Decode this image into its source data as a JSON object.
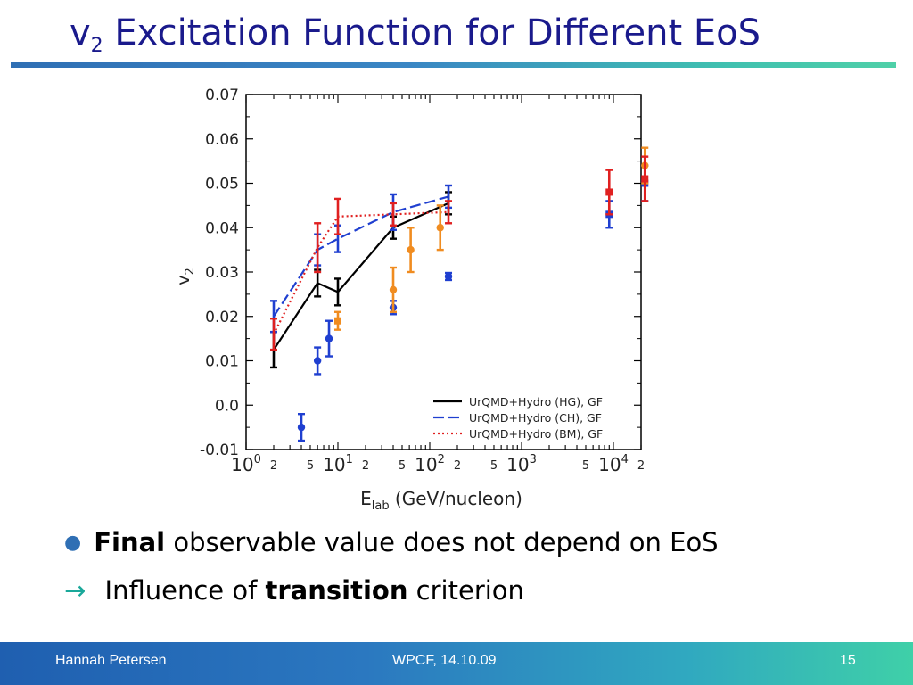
{
  "slide": {
    "title_main": "v",
    "title_sub": "2",
    "title_rest": " Excitation Function for Different EoS",
    "bullet1_bold": "Final",
    "bullet1_rest": " observable value does not depend on EoS",
    "bullet2_arrow": "→",
    "bullet2_pre": " Influence of ",
    "bullet2_bold": "transition",
    "bullet2_post": " criterion"
  },
  "footer": {
    "author": "Hannah Petersen",
    "event": "WPCF, 14.10.09",
    "page": "15"
  },
  "colors": {
    "title": "#1a1a8c",
    "hg": "#000000",
    "ch": "#1f3fd0",
    "bm": "#e02020",
    "exp_orange": "#f08c20"
  },
  "chart_data": {
    "type": "line",
    "xscale": "log",
    "xlim": [
      1,
      20000
    ],
    "ylim": [
      -0.01,
      0.07
    ],
    "ylabel_main": "v",
    "ylabel_sub": "2",
    "xlabel_main": "E",
    "xlabel_sub": "lab",
    "xlabel_rest": " (GeV/nucleon)",
    "yticks": [
      "0.07",
      "0.06",
      "0.05",
      "0.04",
      "0.03",
      "0.02",
      "0.01",
      "0.0",
      "-0.01"
    ],
    "ytick_values": [
      0.07,
      0.06,
      0.05,
      0.04,
      0.03,
      0.02,
      0.01,
      0.0,
      -0.01
    ],
    "xticks": [
      {
        "x": 1,
        "base": "10",
        "exp": "0"
      },
      {
        "x": 10,
        "base": "10",
        "exp": "1"
      },
      {
        "x": 100,
        "base": "10",
        "exp": "2"
      },
      {
        "x": 1000,
        "base": "10",
        "exp": "3"
      },
      {
        "x": 10000,
        "base": "10",
        "exp": "4"
      }
    ],
    "xminor_labels": [
      {
        "x": 2,
        "label": "2"
      },
      {
        "x": 5,
        "label": "5"
      },
      {
        "x": 20,
        "label": "2"
      },
      {
        "x": 50,
        "label": "5"
      },
      {
        "x": 200,
        "label": "2"
      },
      {
        "x": 500,
        "label": "5"
      },
      {
        "x": 5000,
        "label": "5"
      },
      {
        "x": 20000,
        "label": "2"
      }
    ],
    "legend": [
      {
        "name": "UrQMD+Hydro (HG), GF",
        "style": "solid",
        "color": "#000000"
      },
      {
        "name": "UrQMD+Hydro (CH), GF",
        "style": "dashed",
        "color": "#1f3fd0"
      },
      {
        "name": "UrQMD+Hydro (BM), GF",
        "style": "dotted",
        "color": "#e02020"
      }
    ],
    "legend_position": "bottom-right",
    "series": [
      {
        "name": "UrQMD+Hydro (HG), GF",
        "color": "#000000",
        "style": "solid",
        "x": [
          2,
          6,
          10,
          40,
          160
        ],
        "y": [
          0.0125,
          0.0275,
          0.0255,
          0.04,
          0.0455
        ],
        "err": [
          0.004,
          0.003,
          0.003,
          0.0025,
          0.0025
        ]
      },
      {
        "name": "UrQMD+Hydro (CH), GF",
        "color": "#1f3fd0",
        "style": "dashed",
        "x": [
          2,
          6,
          10,
          40,
          160
        ],
        "y": [
          0.02,
          0.035,
          0.0375,
          0.0435,
          0.047
        ],
        "err": [
          0.0035,
          0.0035,
          0.003,
          0.004,
          0.0025
        ]
      },
      {
        "name": "UrQMD+Hydro (BM), GF",
        "color": "#e02020",
        "style": "dotted",
        "x": [
          2,
          6,
          10,
          40,
          160
        ],
        "y": [
          0.016,
          0.0355,
          0.0425,
          0.043,
          0.0435
        ],
        "err": [
          0.0035,
          0.0055,
          0.004,
          0.0025,
          0.0025
        ]
      }
    ],
    "extra_points": [
      {
        "color": "#1f3fd0",
        "shape": "circle",
        "x": [
          4,
          6,
          8,
          40,
          160
        ],
        "y": [
          -0.005,
          0.01,
          0.015,
          0.022,
          0.029
        ],
        "err": [
          0.003,
          0.003,
          0.004,
          0.0015,
          0.0008
        ]
      },
      {
        "color": "#f08c20",
        "shape": "square",
        "x": [
          10
        ],
        "y": [
          0.019
        ],
        "err": [
          0.002
        ]
      },
      {
        "color": "#f08c20",
        "shape": "circle",
        "x": [
          40,
          62,
          130
        ],
        "y": [
          0.026,
          0.035,
          0.04
        ],
        "err": [
          0.005,
          0.005,
          0.005
        ]
      },
      {
        "color": "#1f3fd0",
        "shape": "square",
        "x": [
          9000,
          22000
        ],
        "y": [
          0.043,
          0.05
        ],
        "err": [
          0.003,
          0.004
        ]
      },
      {
        "color": "#f08c20",
        "shape": "circle",
        "x": [
          22000
        ],
        "y": [
          0.054
        ],
        "err": [
          0.004
        ]
      },
      {
        "color": "#e02020",
        "shape": "square",
        "x": [
          9000,
          22000
        ],
        "y": [
          0.048,
          0.051
        ],
        "err": [
          0.005,
          0.005
        ]
      }
    ]
  }
}
